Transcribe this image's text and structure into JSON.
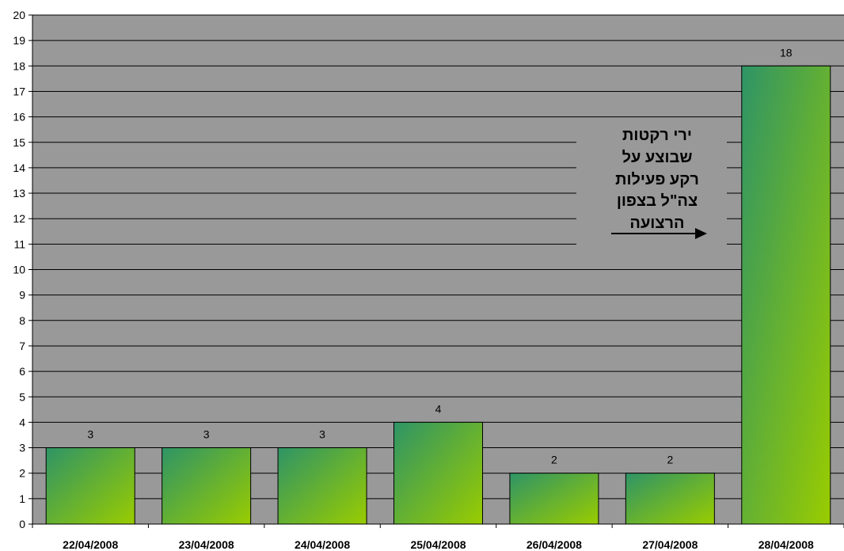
{
  "colors": {
    "plot_background": "#999999",
    "gridline": "#000000",
    "bar_gradient_start": "#2e9466",
    "bar_gradient_end": "#99cc00",
    "bar_border": "#000000"
  },
  "annotation": {
    "lines": [
      "ירי רקטות",
      "שבוצע על",
      "רקע פעילות",
      "צה\"ל בצפון",
      "הרצועה"
    ],
    "arrow_direction": "right"
  },
  "chart_data": {
    "type": "bar",
    "categories": [
      "22/04/2008",
      "23/04/2008",
      "24/04/2008",
      "25/04/2008",
      "26/04/2008",
      "27/04/2008",
      "28/04/2008"
    ],
    "values": [
      3,
      3,
      3,
      4,
      2,
      2,
      18
    ],
    "title": "",
    "xlabel": "",
    "ylabel": "",
    "ylim": [
      0,
      20
    ],
    "ytick_step": 1,
    "data_labels": true,
    "grid": true,
    "legend": "none"
  }
}
